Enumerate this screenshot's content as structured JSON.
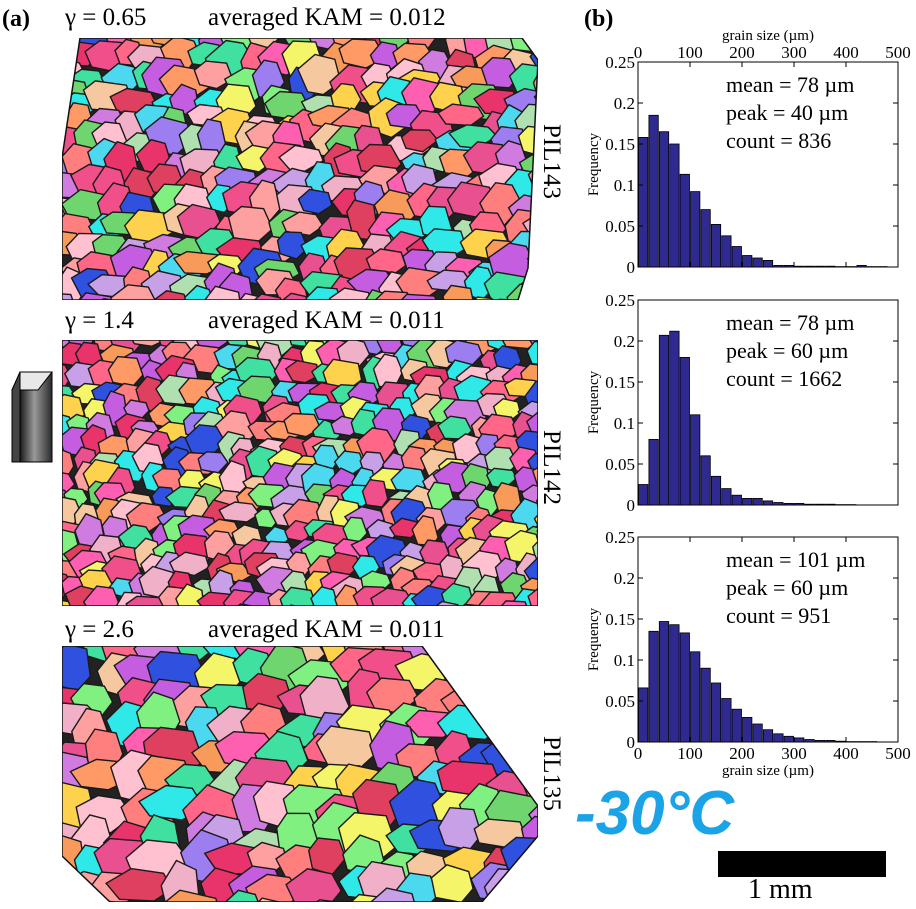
{
  "panel_a_letter": "(a)",
  "panel_b_letter": "(b)",
  "maps": [
    {
      "gamma": "γ = 0.65",
      "kam": "averaged KAM = 0.012",
      "sample": "PIL143"
    },
    {
      "gamma": "γ = 1.4",
      "kam": "averaged KAM = 0.011",
      "sample": "PIL142"
    },
    {
      "gamma": "γ = 2.6",
      "kam": "averaged KAM = 0.011",
      "sample": "PIL135"
    }
  ],
  "temperature": "-30°C",
  "scale_bar_label": "1 mm",
  "colors": {
    "bar_fill": "#2e2a8f",
    "bar_stroke": "#000000",
    "temperature": "#1aa3e6"
  },
  "chart_data": [
    {
      "type": "bar",
      "title": "",
      "xlabel": "grain size (µm)",
      "ylabel": "Frequency",
      "xlim": [
        0,
        500
      ],
      "ylim": [
        0,
        0.25
      ],
      "xticks": [
        0,
        100,
        200,
        300,
        400,
        500
      ],
      "yticks": [
        "0",
        "0.05",
        "0.1",
        "0.15",
        "0.2",
        "0.25"
      ],
      "x_axis_position": "top",
      "bin_width": 20,
      "bin_centers": [
        10,
        30,
        50,
        70,
        90,
        110,
        130,
        150,
        170,
        190,
        210,
        230,
        250,
        270,
        290,
        310,
        330,
        350,
        370,
        390,
        410,
        430,
        450,
        470,
        490
      ],
      "values": [
        0.158,
        0.185,
        0.165,
        0.15,
        0.113,
        0.092,
        0.07,
        0.052,
        0.038,
        0.025,
        0.014,
        0.011,
        0.008,
        0.002,
        0.002,
        0.001,
        0.001,
        0.001,
        0.001,
        0.0005,
        0.0005,
        0.002,
        0.0005,
        0.0005,
        0.0
      ],
      "annotations": [
        "mean = 78 µm",
        "peak = 40 µm",
        "count = 836"
      ],
      "grid": false
    },
    {
      "type": "bar",
      "title": "",
      "xlabel": "",
      "ylabel": "Frequency",
      "xlim": [
        0,
        500
      ],
      "ylim": [
        0,
        0.25
      ],
      "xticks": [],
      "yticks": [
        "0",
        "0.05",
        "0.1",
        "0.15",
        "0.2",
        "0.25"
      ],
      "bin_width": 20,
      "bin_centers": [
        10,
        30,
        50,
        70,
        90,
        110,
        130,
        150,
        170,
        190,
        210,
        230,
        250,
        270,
        290,
        310,
        330,
        350,
        370,
        390,
        410,
        430,
        450,
        470,
        490
      ],
      "values": [
        0.025,
        0.08,
        0.207,
        0.212,
        0.18,
        0.11,
        0.06,
        0.035,
        0.02,
        0.012,
        0.008,
        0.008,
        0.005,
        0.003,
        0.002,
        0.002,
        0.001,
        0.001,
        0.001,
        0.0005,
        0.0005,
        0.0,
        0.0,
        0.0,
        0.0
      ],
      "annotations": [
        "mean = 78 µm",
        "peak = 60 µm",
        "count = 1662"
      ],
      "grid": false
    },
    {
      "type": "bar",
      "title": "",
      "xlabel": "grain size (µm)",
      "ylabel": "Frequency",
      "xlim": [
        0,
        500
      ],
      "ylim": [
        0,
        0.25
      ],
      "xticks": [
        0,
        100,
        200,
        300,
        400,
        500
      ],
      "yticks": [
        "0",
        "0.05",
        "0.1",
        "0.15",
        "0.2",
        "0.25"
      ],
      "x_axis_position": "bottom",
      "bin_width": 20,
      "bin_centers": [
        10,
        30,
        50,
        70,
        90,
        110,
        130,
        150,
        170,
        190,
        210,
        230,
        250,
        270,
        290,
        310,
        330,
        350,
        370,
        390,
        410,
        430,
        450,
        470,
        490
      ],
      "values": [
        0.066,
        0.135,
        0.147,
        0.143,
        0.133,
        0.11,
        0.09,
        0.072,
        0.053,
        0.04,
        0.03,
        0.022,
        0.015,
        0.01,
        0.007,
        0.005,
        0.003,
        0.002,
        0.002,
        0.001,
        0.0005,
        0.0005,
        0.0005,
        0.0,
        0.0
      ],
      "annotations": [
        "mean = 101 µm",
        "peak = 60 µm",
        "count = 951"
      ],
      "grid": false
    }
  ]
}
